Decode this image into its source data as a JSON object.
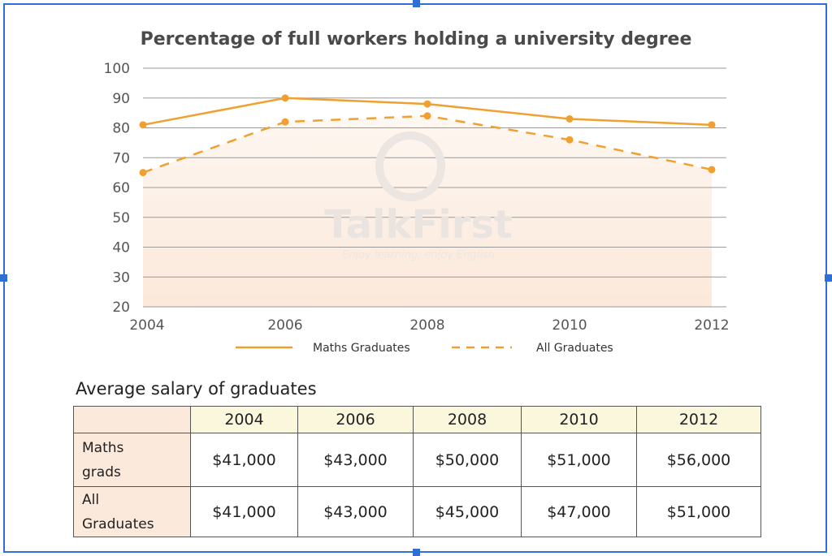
{
  "chart_data": {
    "type": "line",
    "title": "Percentage of full workers holding a university degree",
    "x": [
      "2004",
      "2006",
      "2008",
      "2010",
      "2012"
    ],
    "y_ticks": [
      100,
      90,
      80,
      70,
      60,
      50,
      40,
      30,
      20
    ],
    "ylim": [
      20,
      100
    ],
    "grid": true,
    "legend_position": "bottom",
    "series": [
      {
        "name": "Maths Graduates",
        "style": "solid",
        "color": "#f0a030",
        "values": [
          81,
          90,
          88,
          83,
          81
        ]
      },
      {
        "name": "All Graduates",
        "style": "dashed",
        "color": "#f0a030",
        "values": [
          65,
          82,
          84,
          76,
          66
        ]
      }
    ]
  },
  "watermark": {
    "name": "TalkFirst",
    "tagline": "Enjoy learning, enjoy English"
  },
  "salary_table": {
    "title": "Average salary of graduates",
    "columns": [
      "2004",
      "2006",
      "2008",
      "2010",
      "2012"
    ],
    "rows": [
      {
        "label_lines": [
          "Maths",
          "grads"
        ],
        "values": [
          "$41,000",
          "$43,000",
          "$50,000",
          "$51,000",
          "$56,000"
        ]
      },
      {
        "label_lines": [
          "All",
          "Graduates"
        ],
        "values": [
          "$41,000",
          "$43,000",
          "$45,000",
          "$47,000",
          "$51,000"
        ]
      }
    ]
  },
  "colors": {
    "accent": "#f0a030",
    "selection": "#2f6fd6",
    "table_header": "#fbf7dc",
    "row_header": "#fbe9dc"
  }
}
